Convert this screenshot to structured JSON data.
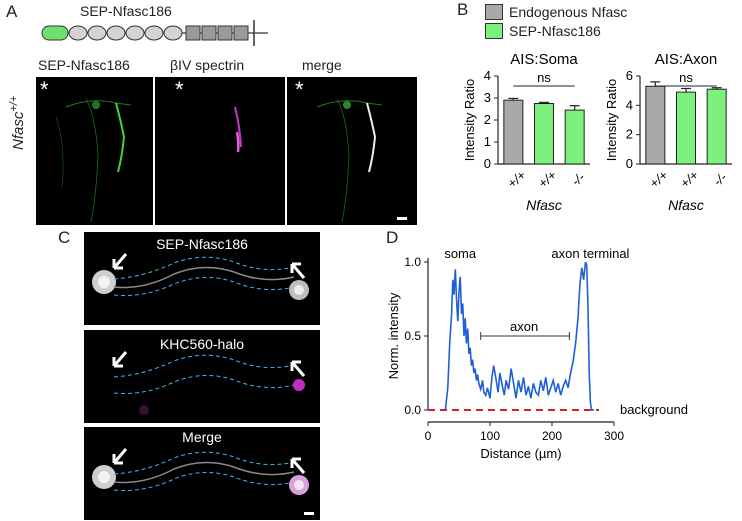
{
  "panels": {
    "a": "A",
    "b": "B",
    "c": "C",
    "d": "D"
  },
  "construct": {
    "label": "SEP-Nfasc186",
    "gfp_color": "#6fe06f",
    "ig_color": "#d3d3d3",
    "fn_color": "#9a9a9a"
  },
  "images_a": {
    "titles": [
      "SEP-Nfasc186",
      "βIV spectrin",
      "merge"
    ],
    "asterisk": "*",
    "row_label": "Nfasc",
    "row_label_sup": "+/+"
  },
  "legend_b": {
    "items": [
      {
        "label": "Endogenous Nfasc",
        "color": "#a9a9a9"
      },
      {
        "label": "SEP-Nfasc186",
        "color": "#7ef07e"
      }
    ]
  },
  "chart_data": [
    {
      "type": "bar",
      "title": "AIS:Soma",
      "ylabel": "Intensity Ratio",
      "xlabel": "Nfasc",
      "categories": [
        "+/+",
        "+/+",
        "-/-"
      ],
      "values": [
        2.9,
        2.75,
        2.45
      ],
      "errors": [
        0.08,
        0.05,
        0.2
      ],
      "colors": [
        "#a9a9a9",
        "#7ef07e",
        "#7ef07e"
      ],
      "ylim": [
        0,
        4
      ],
      "yticks": [
        0,
        1,
        2,
        3,
        4
      ],
      "annotation": "ns"
    },
    {
      "type": "bar",
      "title": "AIS:Axon",
      "ylabel": "Intensity Ratio",
      "xlabel": "Nfasc",
      "categories": [
        "+/+",
        "+/+",
        "-/-"
      ],
      "values": [
        5.3,
        4.9,
        5.1
      ],
      "errors": [
        0.3,
        0.25,
        0.1
      ],
      "colors": [
        "#a9a9a9",
        "#7ef07e",
        "#7ef07e"
      ],
      "ylim": [
        0,
        6
      ],
      "yticks": [
        0,
        2,
        4,
        6
      ],
      "annotation": "ns"
    },
    {
      "type": "line",
      "xlabel": "Distance (µm)",
      "ylabel": "Norm. intensity",
      "xlim": [
        0,
        300
      ],
      "ylim": [
        0,
        1.0
      ],
      "xticks": [
        0,
        100,
        200,
        300
      ],
      "yticks": [
        0.0,
        0.5,
        1.0
      ],
      "ytick_labels": [
        "0.0",
        "0.5",
        "1.0"
      ],
      "line_color": "#1f5fd6",
      "baseline_color": "#e02020",
      "annotations": {
        "soma": "soma",
        "axon_terminal": "axon terminal",
        "axon": "axon",
        "background": "background"
      },
      "x": [
        28,
        32,
        35,
        38,
        40,
        42,
        44,
        46,
        48,
        50,
        52,
        54,
        56,
        58,
        60,
        62,
        64,
        66,
        68,
        70,
        72,
        74,
        76,
        78,
        80,
        82,
        85,
        88,
        90,
        93,
        96,
        100,
        103,
        106,
        110,
        113,
        116,
        120,
        123,
        126,
        130,
        134,
        138,
        142,
        146,
        150,
        154,
        158,
        162,
        166,
        170,
        174,
        178,
        182,
        186,
        190,
        194,
        198,
        202,
        206,
        210,
        214,
        218,
        222,
        226,
        230,
        234,
        238,
        242,
        245,
        248,
        251,
        254,
        256,
        258,
        260,
        262,
        264,
        266,
        268
      ],
      "y": [
        0.0,
        0.15,
        0.45,
        0.65,
        0.88,
        0.78,
        0.95,
        0.75,
        0.6,
        0.8,
        0.9,
        0.65,
        0.72,
        0.5,
        0.62,
        0.45,
        0.55,
        0.38,
        0.42,
        0.3,
        0.34,
        0.25,
        0.28,
        0.2,
        0.24,
        0.18,
        0.14,
        0.2,
        0.12,
        0.1,
        0.15,
        0.08,
        0.22,
        0.3,
        0.2,
        0.12,
        0.25,
        0.16,
        0.1,
        0.2,
        0.14,
        0.28,
        0.18,
        0.08,
        0.2,
        0.12,
        0.22,
        0.1,
        0.16,
        0.08,
        0.18,
        0.12,
        0.1,
        0.2,
        0.13,
        0.22,
        0.1,
        0.15,
        0.2,
        0.12,
        0.18,
        0.1,
        0.16,
        0.2,
        0.15,
        0.25,
        0.33,
        0.45,
        0.62,
        0.85,
        0.96,
        0.88,
        1.0,
        0.98,
        0.7,
        0.25,
        0.05,
        0.0,
        0.0,
        0.0
      ]
    }
  ],
  "images_c": {
    "titles": [
      "SEP-Nfasc186",
      "KHC560-halo",
      "Merge"
    ]
  }
}
